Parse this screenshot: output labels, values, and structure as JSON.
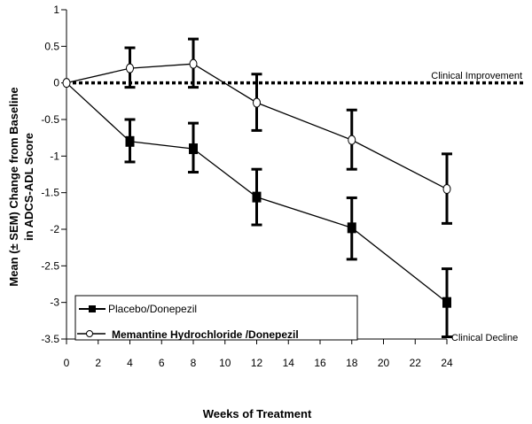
{
  "chart_data": {
    "type": "line",
    "title": "",
    "xlabel": "Weeks of Treatment",
    "ylabel_lines": [
      "Mean (± SEM) Change from Baseline",
      "in ADCS-ADL Score"
    ],
    "ylabel": "Mean (± SEM) Change from Baseline in ADCS-ADL Score",
    "xlim": [
      0,
      24
    ],
    "ylim": [
      -3.5,
      1
    ],
    "x_ticks": [
      0,
      2,
      4,
      6,
      8,
      10,
      12,
      14,
      16,
      18,
      20,
      22,
      24
    ],
    "x_tick_labels": [
      "0",
      "2",
      "4",
      "6",
      "8",
      "10",
      "12",
      "14",
      "16",
      "18",
      "20",
      "22",
      "24"
    ],
    "y_ticks": [
      1,
      0.5,
      0,
      -0.5,
      -1,
      -1.5,
      -2,
      -2.5,
      -3,
      -3.5
    ],
    "y_tick_labels": [
      "1",
      "0.5",
      "0",
      "-0.5",
      "-1",
      "-1.5",
      "-2",
      "-2.5",
      "-3",
      "-3.5"
    ],
    "grid": false,
    "legend_position": "bottom-left",
    "reference_line": {
      "y": 0,
      "style": "dotted"
    },
    "annotations": [
      {
        "text": "Clinical Improvement",
        "position": "right, above zero line"
      },
      {
        "text": "Clinical Decline",
        "position": "bottom-right"
      }
    ],
    "series": [
      {
        "name": "Placebo/Donepezil",
        "marker": "filled-square",
        "x": [
          0,
          4,
          8,
          12,
          18,
          24
        ],
        "values": [
          0,
          -0.8,
          -0.9,
          -1.56,
          -1.98,
          -3.0
        ],
        "error_upper": [
          null,
          -0.5,
          -0.55,
          -1.18,
          -1.57,
          -2.54
        ],
        "error_lower": [
          null,
          -1.08,
          -1.22,
          -1.94,
          -2.41,
          -3.47
        ]
      },
      {
        "name": "Memantine Hydrochloride /Donepezil",
        "marker": "open-circle",
        "x": [
          0,
          4,
          8,
          12,
          18,
          24
        ],
        "values": [
          0,
          0.2,
          0.26,
          -0.27,
          -0.78,
          -1.45
        ],
        "error_upper": [
          null,
          0.48,
          0.6,
          0.12,
          -0.37,
          -0.97
        ],
        "error_lower": [
          null,
          -0.06,
          -0.06,
          -0.65,
          -1.18,
          -1.92
        ]
      }
    ]
  }
}
